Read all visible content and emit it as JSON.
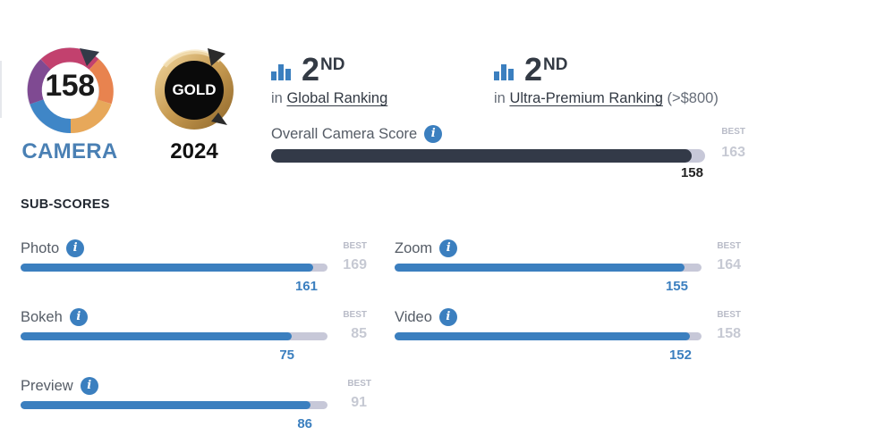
{
  "camera_badge": {
    "score": "158",
    "label": "CAMERA"
  },
  "gold_badge": {
    "text": "GOLD",
    "year": "2024"
  },
  "rankings": [
    {
      "rank": "2",
      "suffix": "ND",
      "prefix": "in",
      "link": "Global Ranking",
      "extra": ""
    },
    {
      "rank": "2",
      "suffix": "ND",
      "prefix": "in",
      "link": "Ultra-Premium Ranking",
      "extra": "(>$800)"
    }
  ],
  "overall": {
    "label": "Overall Camera Score",
    "value": "158",
    "best_label": "BEST",
    "best": "163",
    "fraction": 0.969
  },
  "subscores_title": "SUB-SCORES",
  "subscores": [
    {
      "label": "Photo",
      "value": "161",
      "best_label": "BEST",
      "best": "169",
      "fraction": 0.953
    },
    {
      "label": "Zoom",
      "value": "155",
      "best_label": "BEST",
      "best": "164",
      "fraction": 0.945
    },
    {
      "label": "Bokeh",
      "value": "75",
      "best_label": "BEST",
      "best": "85",
      "fraction": 0.882
    },
    {
      "label": "Video",
      "value": "152",
      "best_label": "BEST",
      "best": "158",
      "fraction": 0.962
    },
    {
      "label": "Preview",
      "value": "86",
      "best_label": "BEST",
      "best": "91",
      "fraction": 0.945
    }
  ],
  "colors": {
    "accent": "#3b7fbf",
    "dark_bar": "#333a48",
    "track": "#c7c8d8",
    "gold": "#c9a45a",
    "camera_label": "#4a80b4"
  },
  "icons": {
    "rank": "bar-chart-icon",
    "info": "info-icon"
  }
}
